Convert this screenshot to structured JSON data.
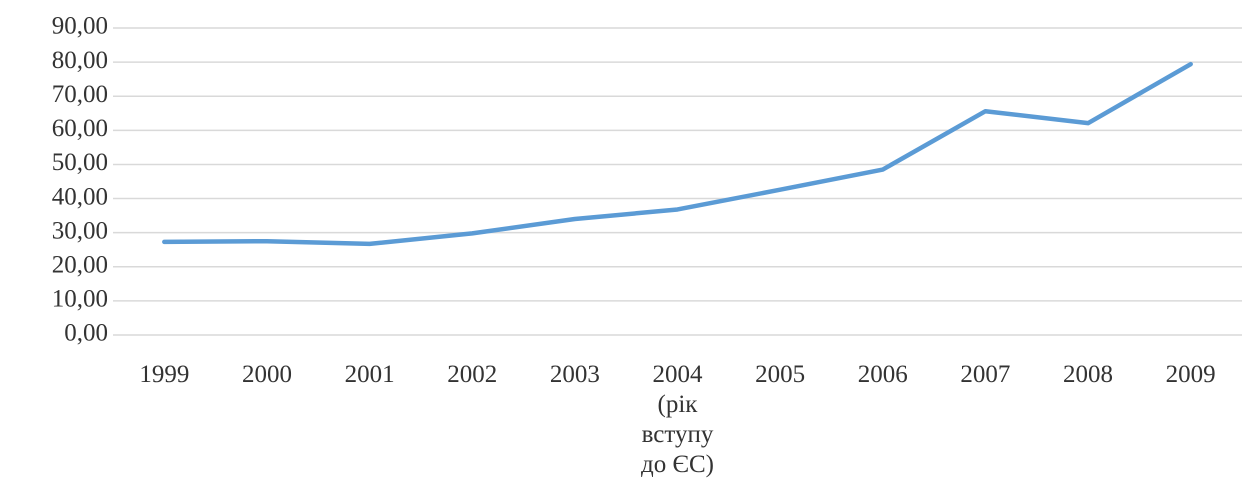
{
  "chart_data": {
    "type": "line",
    "categories": [
      "1999",
      "2000",
      "2001",
      "2002",
      "2003",
      "2004 (рік вступу до ЄС)",
      "2005",
      "2006",
      "2007",
      "2008",
      "2009"
    ],
    "values": [
      27.3,
      27.5,
      26.7,
      29.8,
      34.0,
      36.8,
      42.6,
      48.5,
      65.6,
      62.1,
      79.4
    ],
    "color": "#5b9bd5",
    "ylim": [
      0,
      90
    ],
    "yticks": [
      {
        "value": 0,
        "label": "0,00"
      },
      {
        "value": 10,
        "label": "10,00"
      },
      {
        "value": 20,
        "label": "20,00"
      },
      {
        "value": 30,
        "label": "30,00"
      },
      {
        "value": 40,
        "label": "40,00"
      },
      {
        "value": 50,
        "label": "50,00"
      },
      {
        "value": 60,
        "label": "60,00"
      },
      {
        "value": 70,
        "label": "70,00"
      },
      {
        "value": 80,
        "label": "80,00"
      },
      {
        "value": 90,
        "label": "90,00"
      }
    ],
    "grid": true
  }
}
